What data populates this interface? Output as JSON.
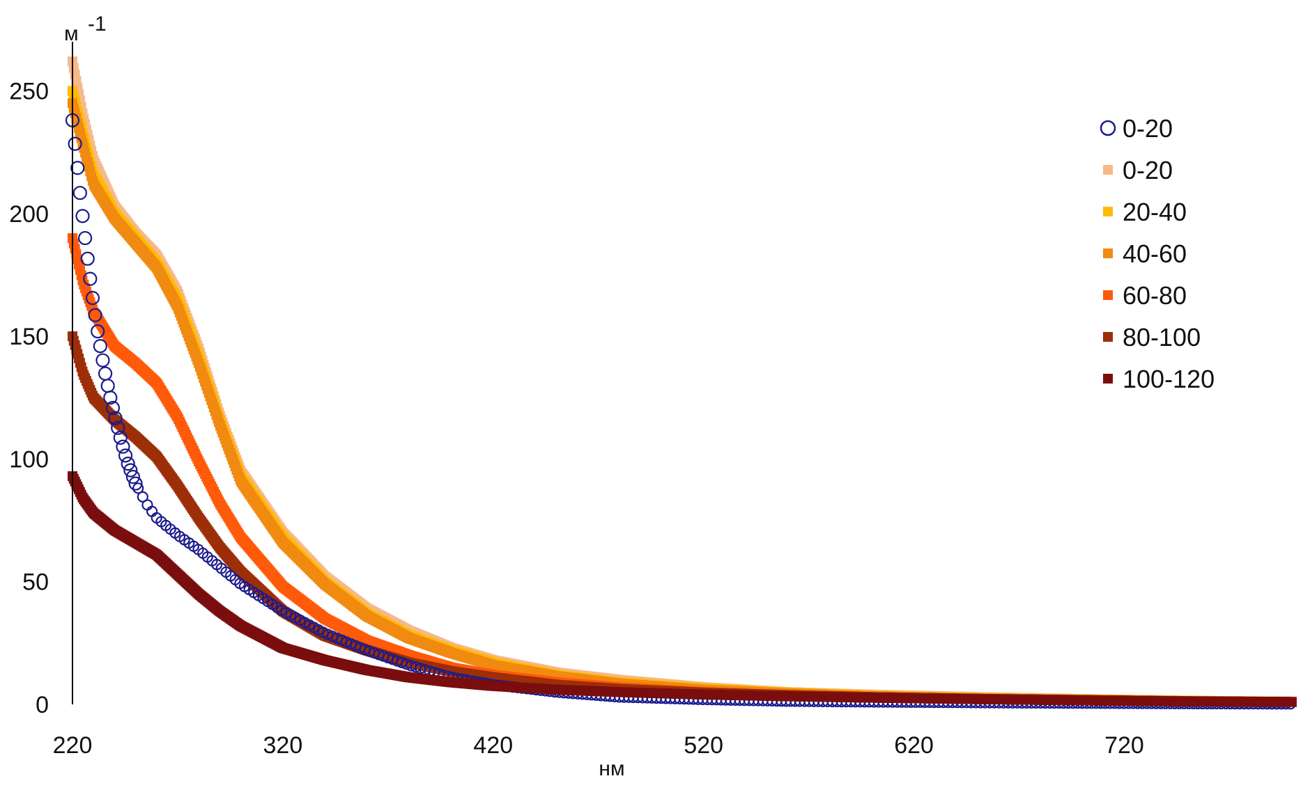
{
  "chart_data": {
    "type": "scatter",
    "xlabel": "нм",
    "ylabel": "м",
    "ylabel_superscript": "-1",
    "xlim": [
      220,
      800
    ],
    "ylim": [
      0,
      270
    ],
    "xticks": [
      220,
      320,
      420,
      520,
      620,
      720
    ],
    "yticks": [
      0,
      50,
      100,
      150,
      200,
      250
    ],
    "grid": false,
    "legend_position": "right",
    "series": [
      {
        "name": "0-20",
        "marker": "circle-open",
        "color": "#1a1a8c",
        "x": [
          220,
          222,
          224,
          226,
          228,
          230,
          232,
          234,
          236,
          238,
          240,
          243,
          246,
          250,
          255,
          260,
          270,
          280,
          290,
          300,
          320,
          340,
          360,
          380,
          400,
          420,
          450,
          480,
          520,
          560,
          600,
          650,
          700,
          750,
          800
        ],
        "y": [
          238,
          222,
          205,
          190,
          176,
          163,
          152,
          142,
          133,
          125,
          118,
          108,
          99,
          90,
          82,
          76,
          69,
          63,
          56,
          49,
          38,
          29,
          22,
          16,
          11,
          8,
          5,
          3,
          2,
          1.3,
          1,
          0.7,
          0.5,
          0.3,
          0.2
        ]
      },
      {
        "name": "0-20",
        "marker": "square",
        "color": "#f5b98a",
        "x": [
          220,
          225,
          230,
          240,
          250,
          260,
          270,
          280,
          290,
          300,
          320,
          340,
          360,
          380,
          400,
          420,
          450,
          480,
          520,
          560,
          600,
          650,
          700,
          750,
          800
        ],
        "y": [
          262,
          240,
          222,
          203,
          192,
          183,
          168,
          145,
          118,
          95,
          70,
          52,
          39,
          30,
          23,
          18,
          13,
          10,
          7,
          5,
          4,
          3,
          2.2,
          1.5,
          1.2
        ]
      },
      {
        "name": "20-40",
        "marker": "square",
        "color": "#ffbb00",
        "x": [
          220,
          225,
          230,
          240,
          250,
          260,
          270,
          280,
          290,
          300,
          320,
          340,
          360,
          380,
          400,
          420,
          450,
          480,
          520,
          560,
          600,
          650,
          700,
          750,
          800
        ],
        "y": [
          250,
          232,
          216,
          200,
          190,
          180,
          165,
          142,
          116,
          93,
          68,
          50,
          37,
          28,
          22,
          17,
          12,
          9,
          6.5,
          4.8,
          3.6,
          2.7,
          2,
          1.5,
          1.1
        ]
      },
      {
        "name": "40-60",
        "marker": "square",
        "color": "#f08a10",
        "x": [
          220,
          225,
          230,
          240,
          250,
          260,
          270,
          280,
          290,
          300,
          320,
          340,
          360,
          380,
          400,
          420,
          450,
          480,
          520,
          560,
          600,
          650,
          700,
          750,
          800
        ],
        "y": [
          245,
          228,
          212,
          198,
          188,
          178,
          162,
          139,
          114,
          91,
          66,
          49,
          36,
          27,
          21,
          16,
          11.5,
          8.5,
          6,
          4.5,
          3.4,
          2.5,
          1.9,
          1.4,
          1
        ]
      },
      {
        "name": "60-80",
        "marker": "square",
        "color": "#ff5a0a",
        "x": [
          220,
          225,
          230,
          240,
          250,
          260,
          270,
          280,
          290,
          300,
          320,
          340,
          360,
          380,
          400,
          420,
          450,
          480,
          520,
          560,
          600,
          650,
          700,
          750,
          800
        ],
        "y": [
          190,
          172,
          160,
          146,
          139,
          131,
          117,
          99,
          82,
          68,
          48,
          35,
          26,
          20,
          15,
          12,
          9,
          7,
          5,
          3.8,
          3,
          2.2,
          1.6,
          1.2,
          0.9
        ]
      },
      {
        "name": "80-100",
        "marker": "square",
        "color": "#9c2e08",
        "x": [
          220,
          225,
          230,
          240,
          250,
          260,
          270,
          280,
          290,
          300,
          320,
          340,
          360,
          380,
          400,
          420,
          450,
          480,
          520,
          560,
          600,
          650,
          700,
          750,
          800
        ],
        "y": [
          150,
          135,
          125,
          116,
          109,
          101,
          89,
          76,
          64,
          54,
          38,
          28,
          22,
          17,
          13.5,
          11,
          8,
          6.3,
          4.8,
          3.8,
          3,
          2.3,
          1.8,
          1.3,
          1
        ]
      },
      {
        "name": "100-120",
        "marker": "square",
        "color": "#7a0e0e",
        "x": [
          220,
          225,
          230,
          240,
          250,
          260,
          270,
          280,
          290,
          300,
          320,
          340,
          360,
          380,
          400,
          420,
          450,
          480,
          520,
          560,
          600,
          650,
          700,
          750,
          800
        ],
        "y": [
          93,
          84,
          78,
          71,
          66,
          61,
          53,
          45,
          38,
          32,
          23,
          18,
          14,
          11,
          9,
          7.5,
          6,
          5,
          4,
          3.3,
          2.7,
          2.1,
          1.6,
          1.2,
          1
        ]
      }
    ]
  }
}
